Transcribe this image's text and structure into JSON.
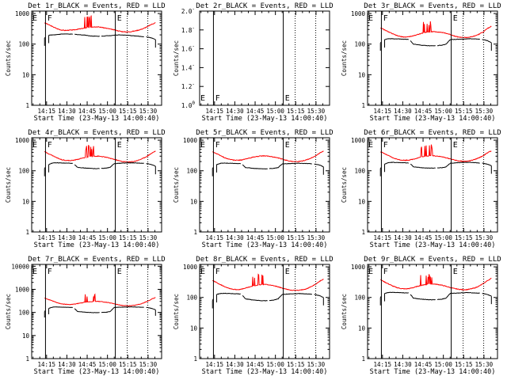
{
  "chart_data": [
    {
      "type": "line",
      "title": "Det 1r_BLACK = Events, RED = LLD",
      "xlabel": "Start Time (23-May-13 14:00:40)",
      "ylabel": "Counts/sec",
      "yticks": [
        "1",
        "10",
        "100",
        "1000"
      ],
      "ylim": [
        1,
        1200
      ],
      "xticks": [
        "14:15",
        "14:30",
        "14:45",
        "15:00",
        "15:15",
        "15:30"
      ],
      "xlim": [
        4,
        100
      ],
      "solid_markers": [
        14.2,
        65.8
      ],
      "dotted_markers": [
        74.6,
        89.8
      ],
      "flags": [
        {
          "label": "E",
          "at": 0.5
        },
        {
          "label": "F",
          "at": 15.0
        },
        {
          "label": "E",
          "at": 66.5
        }
      ],
      "series": [
        {
          "name": "LLD",
          "color": "#ff0000",
          "spikes": true,
          "values": [
            500,
            430,
            370,
            320,
            290,
            280,
            285,
            290,
            305,
            320,
            340,
            355,
            370,
            365,
            350,
            330,
            310,
            290,
            270,
            255,
            250,
            255,
            270,
            290,
            320,
            370,
            440,
            500
          ]
        },
        {
          "name": "Events",
          "color": "#000000",
          "gaps": [
            [
              14.5,
              16.5
            ],
            [
              34.5,
              35.5
            ],
            [
              54.5,
              55.5
            ],
            [
              87.2,
              88.5
            ]
          ],
          "values": [
            160,
            195,
            200,
            205,
            212,
            215,
            212,
            210,
            205,
            200,
            196,
            186,
            182,
            180,
            182,
            186,
            190,
            196,
            200,
            198,
            195,
            190,
            185,
            180,
            175,
            170,
            160,
            140
          ]
        }
      ]
    },
    {
      "type": "line",
      "title": "Det 2r_BLACK = Events, RED = LLD",
      "xlabel": "Start Time (23-May-13 14:00:40)",
      "ylabel": "Counts/sec",
      "yticks": [
        "1.0",
        "1.2",
        "1.4",
        "1.6",
        "1.8",
        "2.0"
      ],
      "ytick_exponents": [
        "0",
        "-",
        "-",
        "-",
        "-",
        "-"
      ],
      "ylim": [
        1,
        2
      ],
      "xticks": [
        "14:15",
        "14:30",
        "14:45",
        "15:00",
        "15:15",
        "15:30"
      ],
      "xlim": [
        4,
        100
      ],
      "solid_markers": [
        14.2,
        65.8
      ],
      "dotted_markers": [
        74.6,
        89.8
      ],
      "flags": [
        {
          "label": "E",
          "at": 0.5
        },
        {
          "label": "F",
          "at": 15.0
        },
        {
          "label": "E",
          "at": 66.5
        }
      ],
      "series": []
    },
    {
      "type": "line",
      "title": "Det 3r_BLACK = Events, RED = LLD",
      "xlabel": "Start Time (23-May-13 14:00:40)",
      "ylabel": "Counts/sec",
      "yticks": [
        "1",
        "10",
        "100",
        "1000"
      ],
      "ylim": [
        1,
        1200
      ],
      "xticks": [
        "14:15",
        "14:30",
        "14:45",
        "15:00",
        "15:15",
        "15:30"
      ],
      "xlim": [
        4,
        100
      ],
      "solid_markers": [
        14.2,
        65.8
      ],
      "dotted_markers": [
        74.6,
        89.8
      ],
      "flags": [
        {
          "label": "E",
          "at": 0.5
        },
        {
          "label": "F",
          "at": 15.0
        },
        {
          "label": "E",
          "at": 66.5
        }
      ],
      "series": [
        {
          "name": "LLD",
          "color": "#ff0000",
          "spikes": true,
          "values": [
            340,
            290,
            250,
            215,
            190,
            175,
            170,
            175,
            185,
            205,
            225,
            240,
            250,
            255,
            250,
            240,
            225,
            205,
            185,
            170,
            165,
            165,
            170,
            185,
            210,
            250,
            320,
            380
          ]
        },
        {
          "name": "Events",
          "color": "#000000",
          "gaps": [
            [
              14.5,
              16.5
            ],
            [
              34.5,
              35.5
            ],
            [
              54.5,
              55.5
            ],
            [
              87.2,
              88.5
            ]
          ],
          "values": [
            110,
            140,
            150,
            150,
            148,
            146,
            144,
            142,
            100,
            96,
            92,
            90,
            88,
            88,
            90,
            92,
            100,
            140,
            142,
            144,
            146,
            148,
            150,
            148,
            145,
            140,
            130,
            110
          ]
        }
      ]
    },
    {
      "type": "line",
      "title": "Det 4r_BLACK = Events, RED = LLD",
      "xlabel": "Start Time (23-May-13 14:00:40)",
      "ylabel": "Counts/sec",
      "yticks": [
        "1",
        "10",
        "100",
        "1000"
      ],
      "ylim": [
        1,
        1200
      ],
      "xticks": [
        "14:15",
        "14:30",
        "14:45",
        "15:00",
        "15:15",
        "15:30"
      ],
      "xlim": [
        4,
        100
      ],
      "solid_markers": [
        14.2,
        65.8
      ],
      "dotted_markers": [
        74.6,
        89.8
      ],
      "flags": [
        {
          "label": "E",
          "at": 0.5
        },
        {
          "label": "F",
          "at": 15.0
        },
        {
          "label": "E",
          "at": 66.5
        }
      ],
      "series": [
        {
          "name": "LLD",
          "color": "#ff0000",
          "spikes": true,
          "values": [
            420,
            360,
            310,
            265,
            235,
            220,
            215,
            220,
            235,
            255,
            275,
            290,
            300,
            300,
            290,
            275,
            255,
            235,
            215,
            200,
            195,
            195,
            205,
            225,
            255,
            300,
            370,
            440
          ]
        },
        {
          "name": "Events",
          "color": "#000000",
          "gaps": [
            [
              14.5,
              16.5
            ],
            [
              34.5,
              35.5
            ],
            [
              54.5,
              55.5
            ],
            [
              87.2,
              88.5
            ]
          ],
          "values": [
            120,
            160,
            180,
            182,
            180,
            178,
            176,
            174,
            130,
            126,
            122,
            120,
            118,
            118,
            120,
            122,
            130,
            172,
            175,
            178,
            180,
            182,
            180,
            178,
            175,
            170,
            160,
            140
          ]
        }
      ]
    },
    {
      "type": "line",
      "title": "Det 5r_BLACK = Events, RED = LLD",
      "xlabel": "Start Time (23-May-13 14:00:40)",
      "ylabel": "Counts/sec",
      "yticks": [
        "1",
        "10",
        "100",
        "1000"
      ],
      "ylim": [
        1,
        1200
      ],
      "xticks": [
        "14:15",
        "14:30",
        "14:45",
        "15:00",
        "15:15",
        "15:30"
      ],
      "xlim": [
        4,
        100
      ],
      "solid_markers": [
        14.2,
        65.8
      ],
      "dotted_markers": [
        74.6,
        89.8
      ],
      "flags": [
        {
          "label": "E",
          "at": 0.5
        },
        {
          "label": "F",
          "at": 15.0
        },
        {
          "label": "E",
          "at": 66.5
        }
      ],
      "series": [
        {
          "name": "LLD",
          "color": "#ff0000",
          "spikes": false,
          "values": [
            420,
            360,
            310,
            265,
            240,
            225,
            220,
            225,
            240,
            260,
            280,
            295,
            305,
            305,
            295,
            280,
            260,
            240,
            220,
            205,
            200,
            200,
            210,
            230,
            260,
            300,
            370,
            440
          ]
        },
        {
          "name": "Events",
          "color": "#000000",
          "gaps": [
            [
              14.5,
              16.5
            ],
            [
              34.5,
              35.5
            ],
            [
              54.5,
              55.5
            ],
            [
              87.2,
              88.5
            ]
          ],
          "values": [
            120,
            160,
            176,
            178,
            176,
            174,
            172,
            170,
            128,
            124,
            120,
            118,
            116,
            116,
            118,
            120,
            128,
            168,
            170,
            172,
            174,
            176,
            174,
            172,
            170,
            165,
            155,
            135
          ]
        }
      ]
    },
    {
      "type": "line",
      "title": "Det 6r_BLACK = Events, RED = LLD",
      "xlabel": "Start Time (23-May-13 14:00:40)",
      "ylabel": "Counts/sec",
      "yticks": [
        "1",
        "10",
        "100",
        "1000"
      ],
      "ylim": [
        1,
        1200
      ],
      "xticks": [
        "14:15",
        "14:30",
        "14:45",
        "15:00",
        "15:15",
        "15:30"
      ],
      "xlim": [
        4,
        100
      ],
      "solid_markers": [
        14.2,
        65.8
      ],
      "dotted_markers": [
        74.6,
        89.8
      ],
      "flags": [
        {
          "label": "E",
          "at": 0.5
        },
        {
          "label": "F",
          "at": 15.0
        },
        {
          "label": "E",
          "at": 66.5
        }
      ],
      "series": [
        {
          "name": "LLD",
          "color": "#ff0000",
          "spikes": true,
          "values": [
            420,
            360,
            310,
            265,
            240,
            225,
            220,
            225,
            240,
            260,
            285,
            300,
            310,
            310,
            300,
            285,
            265,
            245,
            225,
            210,
            205,
            205,
            215,
            235,
            265,
            310,
            380,
            450
          ]
        },
        {
          "name": "Events",
          "color": "#000000",
          "gaps": [
            [
              14.5,
              16.5
            ],
            [
              34.5,
              35.5
            ],
            [
              54.5,
              55.5
            ],
            [
              87.2,
              88.5
            ]
          ],
          "values": [
            120,
            165,
            185,
            188,
            186,
            184,
            182,
            180,
            135,
            130,
            126,
            124,
            122,
            122,
            124,
            126,
            134,
            176,
            180,
            184,
            186,
            188,
            186,
            184,
            180,
            175,
            165,
            145
          ]
        }
      ]
    },
    {
      "type": "line",
      "title": "Det 7r_BLACK = Events, RED = LLD",
      "xlabel": "Start Time (23-May-13 14:00:40)",
      "ylabel": "Counts/sec",
      "yticks": [
        "1",
        "10",
        "100",
        "1000",
        "10000"
      ],
      "ylim": [
        1,
        12000
      ],
      "xticks": [
        "14:15",
        "14:30",
        "14:45",
        "15:00",
        "15:15",
        "15:30"
      ],
      "xlim": [
        4,
        100
      ],
      "solid_markers": [
        14.2,
        65.8
      ],
      "dotted_markers": [
        74.6,
        89.8
      ],
      "flags": [
        {
          "label": "E",
          "at": 0.5
        },
        {
          "label": "F",
          "at": 15.0
        },
        {
          "label": "E",
          "at": 66.5
        }
      ],
      "series": [
        {
          "name": "LLD",
          "color": "#ff0000",
          "spikes": true,
          "values": [
            420,
            360,
            310,
            265,
            240,
            225,
            220,
            225,
            240,
            260,
            280,
            290,
            300,
            300,
            290,
            275,
            255,
            235,
            215,
            200,
            195,
            195,
            205,
            225,
            255,
            300,
            370,
            440
          ]
        },
        {
          "name": "Events",
          "color": "#000000",
          "gaps": [
            [
              14.5,
              16.5
            ],
            [
              34.5,
              35.5
            ],
            [
              54.5,
              55.5
            ],
            [
              87.2,
              88.5
            ]
          ],
          "values": [
            110,
            150,
            170,
            172,
            170,
            168,
            166,
            164,
            110,
            106,
            102,
            100,
            98,
            98,
            100,
            102,
            110,
            165,
            168,
            170,
            172,
            174,
            172,
            170,
            168,
            163,
            150,
            130
          ]
        }
      ]
    },
    {
      "type": "line",
      "title": "Det 8r_BLACK = Events, RED = LLD",
      "xlabel": "Start Time (23-May-13 14:00:40)",
      "ylabel": "Counts/sec",
      "yticks": [
        "1",
        "10",
        "100",
        "1000"
      ],
      "ylim": [
        1,
        1200
      ],
      "xticks": [
        "14:15",
        "14:30",
        "14:45",
        "15:00",
        "15:15",
        "15:30"
      ],
      "xlim": [
        4,
        100
      ],
      "solid_markers": [
        14.2,
        65.8
      ],
      "dotted_markers": [
        74.6,
        89.8
      ],
      "flags": [
        {
          "label": "E",
          "at": 0.5
        },
        {
          "label": "F",
          "at": 15.0
        },
        {
          "label": "E",
          "at": 66.5
        }
      ],
      "series": [
        {
          "name": "LLD",
          "color": "#ff0000",
          "spikes": true,
          "values": [
            360,
            305,
            260,
            225,
            200,
            185,
            180,
            185,
            200,
            220,
            240,
            255,
            265,
            265,
            255,
            240,
            220,
            200,
            185,
            175,
            170,
            170,
            180,
            195,
            225,
            265,
            330,
            400
          ]
        },
        {
          "name": "Events",
          "color": "#000000",
          "gaps": [
            [
              14.5,
              16.5
            ],
            [
              34.5,
              35.5
            ],
            [
              54.5,
              55.5
            ],
            [
              87.2,
              88.5
            ]
          ],
          "values": [
            80,
            125,
            135,
            136,
            135,
            133,
            131,
            129,
            90,
            86,
            82,
            80,
            78,
            78,
            80,
            82,
            90,
            125,
            128,
            130,
            132,
            134,
            132,
            130,
            128,
            124,
            115,
            100
          ]
        }
      ]
    },
    {
      "type": "line",
      "title": "Det 9r_BLACK = Events, RED = LLD",
      "xlabel": "Start Time (23-May-13 14:00:40)",
      "ylabel": "Counts/sec",
      "yticks": [
        "1",
        "10",
        "100",
        "1000"
      ],
      "ylim": [
        1,
        1200
      ],
      "xticks": [
        "14:15",
        "14:30",
        "14:45",
        "15:00",
        "15:15",
        "15:30"
      ],
      "xlim": [
        4,
        100
      ],
      "solid_markers": [
        14.2,
        65.8
      ],
      "dotted_markers": [
        74.6,
        89.8
      ],
      "flags": [
        {
          "label": "E",
          "at": 0.5
        },
        {
          "label": "F",
          "at": 15.0
        },
        {
          "label": "E",
          "at": 66.5
        }
      ],
      "series": [
        {
          "name": "LLD",
          "color": "#ff0000",
          "spikes": true,
          "values": [
            380,
            320,
            275,
            235,
            210,
            195,
            190,
            195,
            210,
            230,
            250,
            265,
            275,
            275,
            265,
            250,
            230,
            210,
            195,
            185,
            180,
            180,
            190,
            205,
            235,
            280,
            350,
            420
          ]
        },
        {
          "name": "Events",
          "color": "#000000",
          "gaps": [
            [
              14.5,
              16.5
            ],
            [
              34.5,
              35.5
            ],
            [
              54.5,
              55.5
            ],
            [
              87.2,
              88.5
            ]
          ],
          "values": [
            100,
            135,
            145,
            146,
            145,
            143,
            141,
            139,
            95,
            91,
            88,
            86,
            84,
            84,
            86,
            88,
            95,
            135,
            138,
            140,
            142,
            144,
            142,
            140,
            138,
            134,
            125,
            110
          ]
        }
      ]
    }
  ]
}
